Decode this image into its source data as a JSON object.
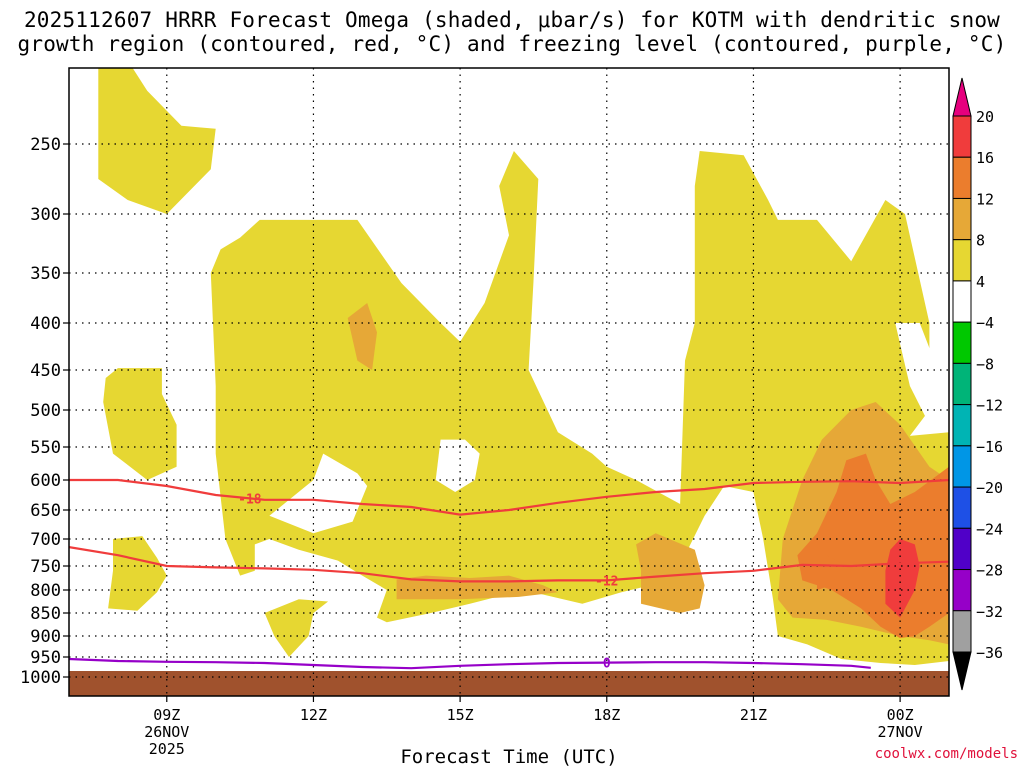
{
  "title": {
    "line1": "2025112607 HRRR Forecast Omega (shaded, μbar/s) for KOTM with dendritic snow",
    "line2": "growth region (contoured, red, °C) and freezing level (contoured, purple, °C)"
  },
  "credit": "coolwx.com/models",
  "chart_data": {
    "type": "heatmap",
    "title": "2025112607 HRRR Forecast Omega (shaded, μbar/s) for KOTM with dendritic snow growth region (contoured, red, °C) and freezing level (contoured, purple, °C)",
    "xlabel": "Forecast Time (UTC)",
    "ylabel": "",
    "x_range_hours_utc": [
      7,
      25
    ],
    "x_ticks": [
      {
        "hour": 9,
        "lines": [
          "09Z",
          "26NOV",
          "2025"
        ]
      },
      {
        "hour": 12,
        "lines": [
          "12Z"
        ]
      },
      {
        "hour": 15,
        "lines": [
          "15Z"
        ]
      },
      {
        "hour": 18,
        "lines": [
          "18Z"
        ]
      },
      {
        "hour": 21,
        "lines": [
          "21Z"
        ]
      },
      {
        "hour": 24,
        "lines": [
          "00Z",
          "27NOV"
        ]
      }
    ],
    "y_axis_pressure_mb": [
      250,
      300,
      350,
      400,
      450,
      500,
      550,
      600,
      650,
      700,
      750,
      800,
      850,
      900,
      950,
      1000
    ],
    "y_scale": "pressure (inverted, top 200 mb to bottom 1010 mb)",
    "grid": true,
    "colorbar": {
      "levels": [
        20,
        16,
        12,
        8,
        4,
        -4,
        -8,
        -12,
        -16,
        -20,
        -24,
        -28,
        -32,
        -36
      ],
      "colors": [
        "#e6007e",
        "#f03c3c",
        "#eb7d2d",
        "#e6a837",
        "#e6d732",
        "#ffffff",
        "#00c800",
        "#00b478",
        "#00b4b4",
        "#0096e6",
        "#1e50e6",
        "#5000c8",
        "#9600c8",
        "#a0a0a0",
        "#000000"
      ],
      "units": "μbar/s"
    },
    "omega_regions": [
      {
        "level": "4-8",
        "color": "#e6d732",
        "description": "broad weak-ascent area across most of period below 300 mb"
      },
      {
        "level": "8-12",
        "color": "#e6a837",
        "approx_hours": [
          13.5,
          25
        ],
        "approx_pressure": [
          350,
          900
        ]
      },
      {
        "level": "12-16",
        "color": "#eb7d2d",
        "approx_hours": [
          22.5,
          25
        ],
        "approx_pressure": [
          560,
          880
        ]
      },
      {
        "level": "16-20",
        "color": "#f03c3c",
        "approx_hours": [
          23.6,
          24.4
        ],
        "approx_pressure": [
          690,
          860
        ]
      }
    ],
    "contours": [
      {
        "name": "dendritic growth region",
        "color": "#f03c3c",
        "label": "-18",
        "points": [
          [
            7,
            600
          ],
          [
            8,
            600
          ],
          [
            9,
            610
          ],
          [
            10,
            625
          ],
          [
            11,
            633
          ],
          [
            12,
            633
          ],
          [
            13,
            640
          ],
          [
            14,
            645
          ],
          [
            15,
            658
          ],
          [
            16,
            650
          ],
          [
            17,
            638
          ],
          [
            18,
            628
          ],
          [
            19,
            620
          ],
          [
            20,
            615
          ],
          [
            21,
            605
          ],
          [
            22,
            603
          ],
          [
            23,
            602
          ],
          [
            24,
            605
          ],
          [
            25,
            600
          ]
        ]
      },
      {
        "name": "dendritic growth region",
        "color": "#f03c3c",
        "label": "-12",
        "points": [
          [
            7,
            715
          ],
          [
            8,
            730
          ],
          [
            9,
            750
          ],
          [
            10,
            753
          ],
          [
            11,
            755
          ],
          [
            12,
            758
          ],
          [
            13,
            765
          ],
          [
            14,
            778
          ],
          [
            15,
            782
          ],
          [
            16,
            782
          ],
          [
            17,
            780
          ],
          [
            18,
            780
          ],
          [
            19,
            772
          ],
          [
            20,
            765
          ],
          [
            21,
            760
          ],
          [
            22,
            748
          ],
          [
            23,
            750
          ],
          [
            24,
            745
          ],
          [
            25,
            742
          ]
        ]
      },
      {
        "name": "freezing level",
        "color": "#9600c8",
        "label": "0",
        "points": [
          [
            7,
            955
          ],
          [
            8,
            960
          ],
          [
            9,
            962
          ],
          [
            10,
            963
          ],
          [
            11,
            965
          ],
          [
            12,
            970
          ],
          [
            13,
            975
          ],
          [
            14,
            978
          ],
          [
            15,
            972
          ],
          [
            16,
            968
          ],
          [
            17,
            965
          ],
          [
            18,
            964
          ],
          [
            19,
            963
          ],
          [
            20,
            963
          ],
          [
            21,
            965
          ],
          [
            22,
            968
          ],
          [
            23,
            972
          ],
          [
            23.4,
            977
          ]
        ]
      }
    ],
    "terrain": {
      "color": "#a0522d",
      "pressure_from": 985,
      "pressure_to": 1010
    }
  }
}
